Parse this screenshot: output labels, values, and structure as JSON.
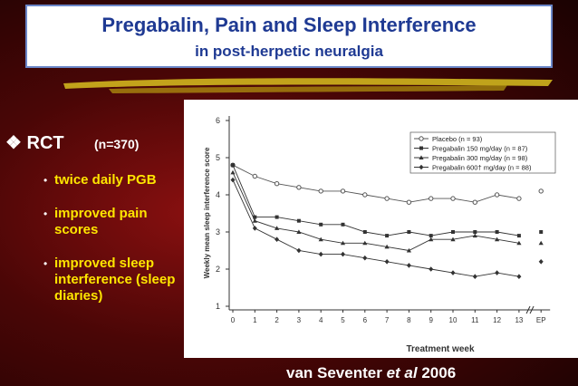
{
  "title": "Pregabalin, Pain and Sleep Interference",
  "subtitle": "in post-herpetic neuralgia",
  "bullets": {
    "heading": "RCT",
    "note": "(n=370)",
    "items": [
      "twice daily PGB",
      "improved pain scores",
      "improved sleep interference (sleep diaries)"
    ]
  },
  "citation": {
    "author": "van Seventer",
    "etal": "et al",
    "year": "2006"
  },
  "chart_data": {
    "type": "line",
    "ylabel": "Weekly mean sleep interference score",
    "xlabel": "Treatment week",
    "categories": [
      "0",
      "1",
      "2",
      "3",
      "4",
      "5",
      "6",
      "7",
      "8",
      "9",
      "10",
      "11",
      "12",
      "13",
      "EP"
    ],
    "x_axis_break": true,
    "ylim": [
      1,
      6
    ],
    "yticks": [
      1,
      2,
      3,
      4,
      5,
      6
    ],
    "legend": "top-right",
    "series": [
      {
        "name": "Placebo (n = 93)",
        "color": "#555555",
        "marker": "circle-open",
        "values": [
          4.8,
          4.5,
          4.3,
          4.2,
          4.1,
          4.1,
          4.0,
          3.9,
          3.8,
          3.9,
          3.9,
          3.8,
          4.0,
          3.9,
          4.1
        ]
      },
      {
        "name": "Pregabalin 150 mg/day (n = 87)",
        "color": "#333333",
        "marker": "square",
        "values": [
          4.8,
          3.4,
          3.4,
          3.3,
          3.2,
          3.2,
          3.0,
          2.9,
          3.0,
          2.9,
          3.0,
          3.0,
          3.0,
          2.9,
          3.0
        ]
      },
      {
        "name": "Pregabalin 300 mg/day (n = 98)",
        "color": "#333333",
        "marker": "triangle",
        "values": [
          4.6,
          3.3,
          3.1,
          3.0,
          2.8,
          2.7,
          2.7,
          2.6,
          2.5,
          2.8,
          2.8,
          2.9,
          2.8,
          2.7,
          2.7
        ]
      },
      {
        "name": "Pregabalin 600† mg/day (n = 88)",
        "color": "#333333",
        "marker": "diamond",
        "values": [
          4.4,
          3.1,
          2.8,
          2.5,
          2.4,
          2.4,
          2.3,
          2.2,
          2.1,
          2.0,
          1.9,
          1.8,
          1.9,
          1.8,
          2.2
        ]
      }
    ]
  }
}
